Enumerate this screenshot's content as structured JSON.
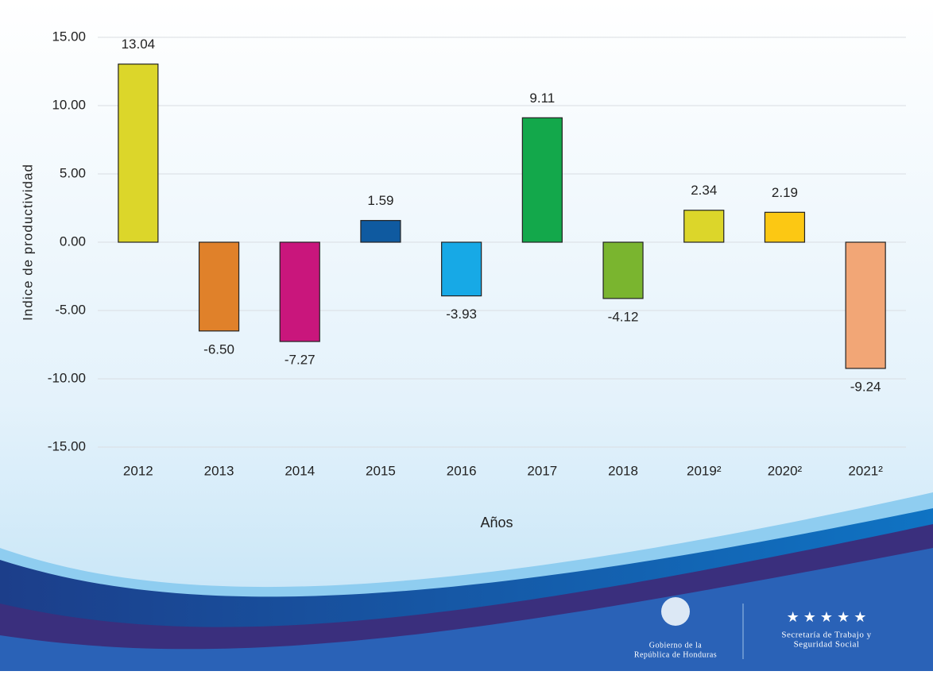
{
  "chart_data": {
    "type": "bar",
    "y_label": "Indice de productividad",
    "x_label": "Años",
    "categories": [
      "2012",
      "2013",
      "2014",
      "2015",
      "2016",
      "2017",
      "2018",
      "2019²",
      "2020²",
      "2021²"
    ],
    "values": [
      13.04,
      -6.5,
      -7.27,
      1.59,
      -3.93,
      9.11,
      -4.12,
      2.34,
      2.19,
      -9.24
    ],
    "value_labels": [
      "13.04",
      "-6.50",
      "-7.27",
      "1.59",
      "-3.93",
      "9.11",
      "-4.12",
      "2.34",
      "2.19",
      "-9.24"
    ],
    "colors": [
      "#dcd62a",
      "#e0812a",
      "#c9167c",
      "#0f5aa0",
      "#17a9e6",
      "#13a84b",
      "#7ab52f",
      "#dcd62a",
      "#fcc813",
      "#f2a676"
    ],
    "ylim": [
      -15,
      15
    ],
    "yticks": [
      {
        "value": -15,
        "label": "-15.00"
      },
      {
        "value": -10,
        "label": "-10.00"
      },
      {
        "value": -5,
        "label": "-5.00"
      },
      {
        "value": 0,
        "label": "0.00"
      },
      {
        "value": 5,
        "label": "5.00"
      },
      {
        "value": 10,
        "label": "10.00"
      },
      {
        "value": 15,
        "label": "15.00"
      }
    ],
    "grid": true
  },
  "footer": {
    "government": [
      "Gobierno de la",
      "República de Honduras"
    ],
    "ministry": [
      "Secretaría de Trabajo y",
      "Seguridad Social"
    ]
  }
}
